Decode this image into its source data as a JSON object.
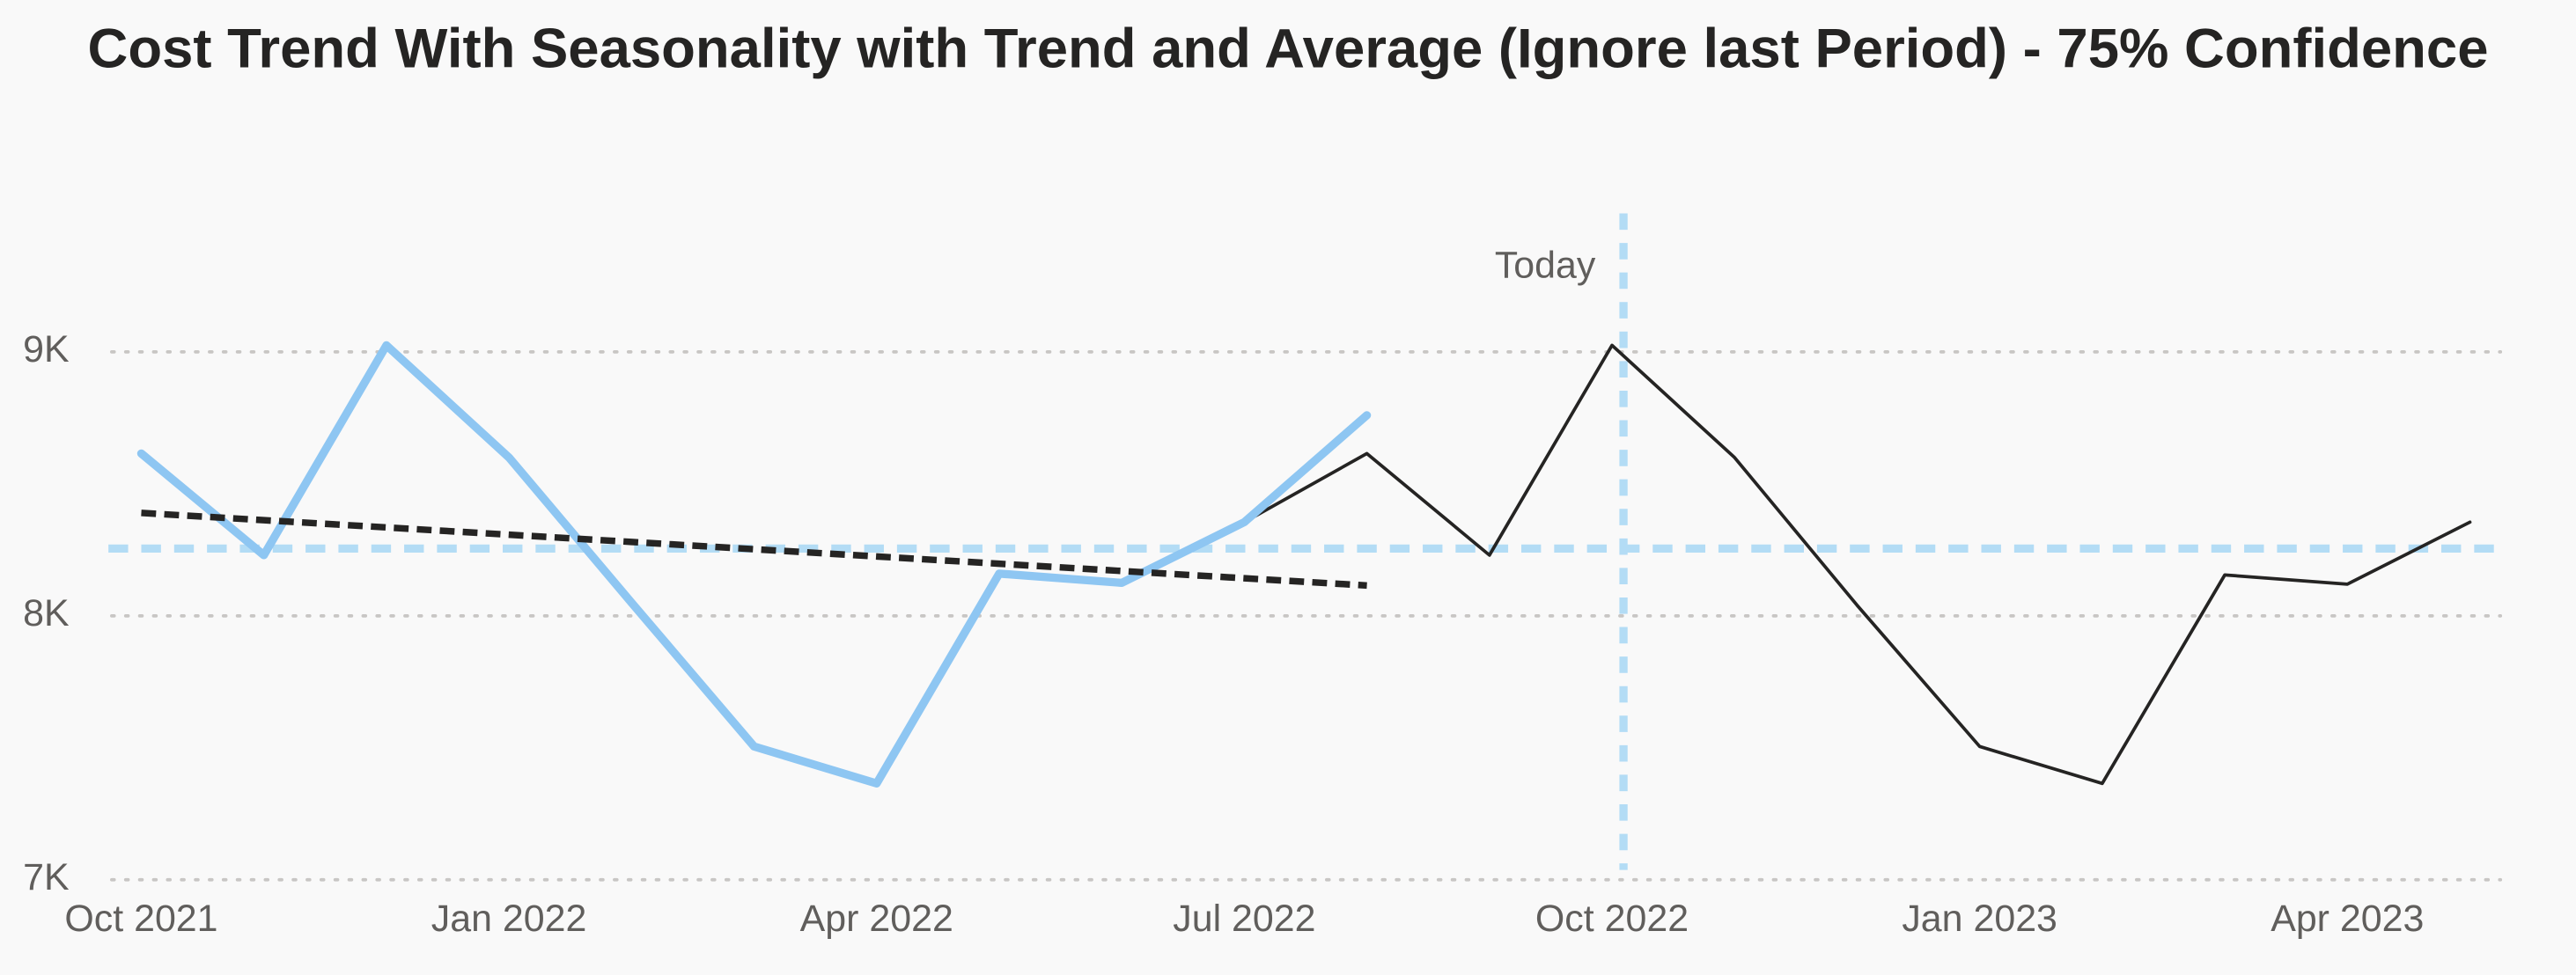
{
  "chart_data": {
    "type": "line",
    "title": "Cost Trend With Seasonality with Trend and Average (Ignore last Period) - 75% Confidence",
    "categories": [
      "Oct 2021",
      null,
      null,
      "Jan 2022",
      null,
      null,
      "Apr 2022",
      null,
      null,
      "Jul 2022",
      null,
      null,
      "Oct 2022",
      null,
      null,
      "Jan 2023",
      null,
      null,
      "Apr 2023",
      null
    ],
    "series": [
      {
        "color": "#8ec6f2",
        "values": [
          8615,
          8230,
          9025,
          8600,
          8050,
          7505,
          7365,
          8160,
          8125,
          8355,
          8760,
          null,
          null,
          null,
          null,
          null,
          null,
          null,
          null,
          null
        ]
      },
      {
        "color": "#252423",
        "values": [
          null,
          null,
          null,
          null,
          null,
          null,
          null,
          null,
          null,
          8355,
          8615,
          8230,
          9025,
          8600,
          8040,
          7505,
          7365,
          8155,
          8120,
          8355
        ]
      }
    ],
    "trend": {
      "color": "#252423",
      "values": [
        8390,
        8362.5,
        8335,
        8307.5,
        8280,
        8252.5,
        8225,
        8197.5,
        8170,
        8142.5,
        8115
      ]
    },
    "average": {
      "color": "#b3dcf5",
      "value": 8255
    },
    "today": {
      "label": "Today",
      "category": "Oct 2022",
      "color": "#b3dcf5"
    },
    "ylim": [
      7000,
      9500
    ],
    "yticks": [
      {
        "value": 7000,
        "label": "7K"
      },
      {
        "value": 8000,
        "label": "8K"
      },
      {
        "value": 9000,
        "label": "9K"
      }
    ],
    "grid": true
  }
}
